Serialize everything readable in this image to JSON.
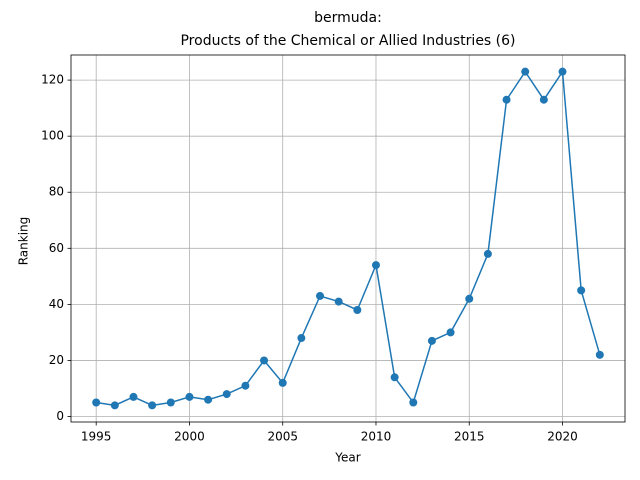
{
  "chart_data": {
    "type": "line",
    "title": [
      "bermuda:",
      "Products of the Chemical or Allied Industries (6)"
    ],
    "xlabel": "Year",
    "ylabel": "Ranking",
    "x": [
      1995,
      1996,
      1997,
      1998,
      1999,
      2000,
      2001,
      2002,
      2003,
      2004,
      2005,
      2006,
      2007,
      2008,
      2009,
      2010,
      2011,
      2012,
      2013,
      2014,
      2015,
      2016,
      2017,
      2018,
      2019,
      2020,
      2021,
      2022
    ],
    "series": [
      {
        "name": "Ranking",
        "color": "#1f77b4",
        "values": [
          5,
          4,
          7,
          4,
          5,
          7,
          6,
          8,
          11,
          20,
          12,
          28,
          43,
          41,
          38,
          54,
          14,
          5,
          27,
          30,
          42,
          58,
          113,
          123,
          113,
          123,
          45,
          22
        ]
      }
    ],
    "xlim": [
      1993.65,
      2023.35
    ],
    "xticks": [
      1995,
      2000,
      2005,
      2010,
      2015,
      2020
    ],
    "ylim": [
      -1.95,
      128.95
    ],
    "yticks": [
      0,
      20,
      40,
      60,
      80,
      100,
      120
    ],
    "grid": true
  }
}
